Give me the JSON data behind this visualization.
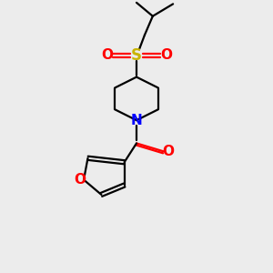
{
  "bg_color": "#ececec",
  "bond_color": "#000000",
  "sulfur_color": "#c8b400",
  "oxygen_color": "#ff0000",
  "nitrogen_color": "#0000ff",
  "line_width": 1.6,
  "dbo": 0.06,
  "figsize": [
    3.0,
    3.0
  ],
  "dpi": 100,
  "xlim": [
    0,
    10
  ],
  "ylim": [
    0,
    10
  ]
}
